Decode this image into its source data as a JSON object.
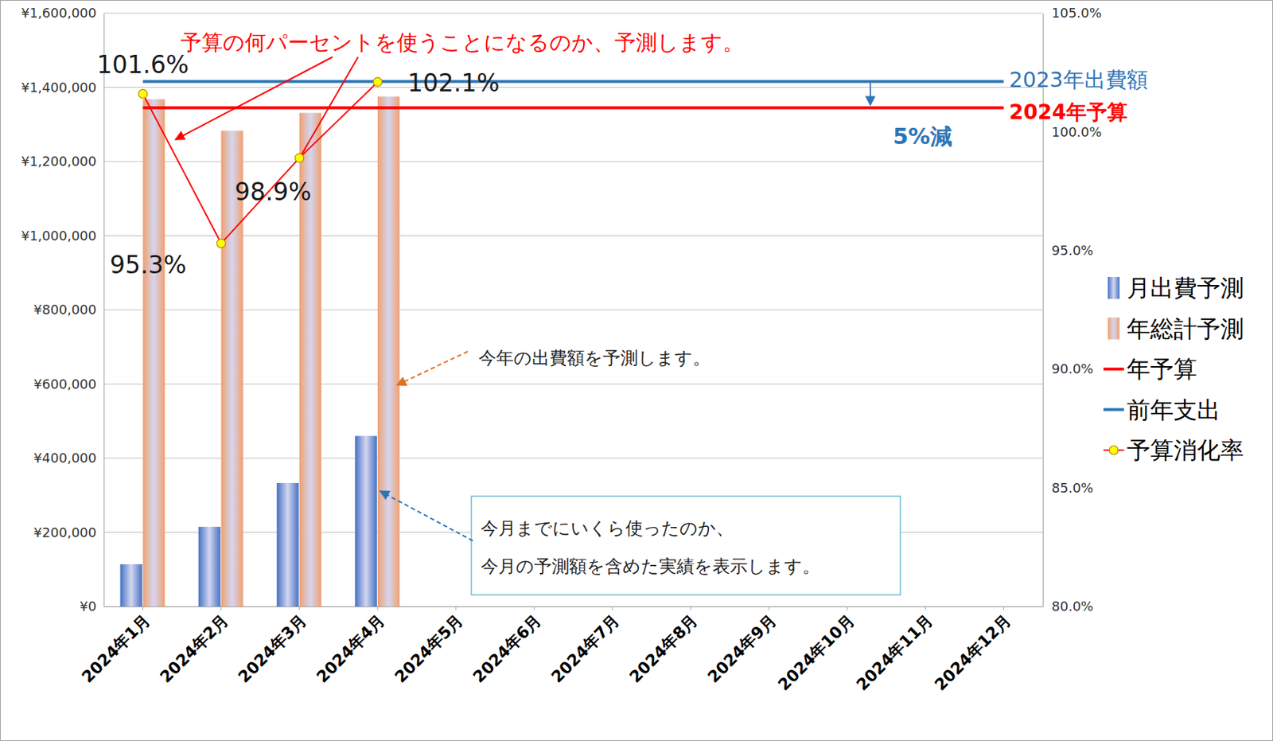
{
  "chart_data": {
    "type": "bar",
    "categories": [
      "2024年1月",
      "2024年2月",
      "2024年3月",
      "2024年4月",
      "2024年5月",
      "2024年6月",
      "2024年7月",
      "2024年8月",
      "2024年9月",
      "2024年10月",
      "2024年11月",
      "2024年12月"
    ],
    "ylim": [
      0,
      1600000
    ],
    "yticks": [
      {
        "value": 0,
        "label": "¥0"
      },
      {
        "value": 200000,
        "label": "¥200,000"
      },
      {
        "value": 400000,
        "label": "¥400,000"
      },
      {
        "value": 600000,
        "label": "¥600,000"
      },
      {
        "value": 800000,
        "label": "¥800,000"
      },
      {
        "value": 1000000,
        "label": "¥1,000,000"
      },
      {
        "value": 1200000,
        "label": "¥1,200,000"
      },
      {
        "value": 1400000,
        "label": "¥1,400,000"
      },
      {
        "value": 1600000,
        "label": "¥1,600,000"
      }
    ],
    "y2lim": [
      80,
      105
    ],
    "y2ticks": [
      {
        "value": 80,
        "label": "80.0%"
      },
      {
        "value": 85,
        "label": "85.0%"
      },
      {
        "value": 90,
        "label": "90.0%"
      },
      {
        "value": 95,
        "label": "95.0%"
      },
      {
        "value": 100,
        "label": "100.0%"
      },
      {
        "value": 105,
        "label": "105.0%"
      }
    ],
    "grid": true,
    "legend": "right",
    "series": [
      {
        "name": "月出費予測",
        "type": "bar",
        "color": "#4472c4",
        "values": [
          114000,
          215000,
          333000,
          460000,
          null,
          null,
          null,
          null,
          null,
          null,
          null,
          null
        ]
      },
      {
        "name": "年総計予測",
        "type": "bar",
        "color": "#f0a070",
        "values": [
          1368000,
          1283000,
          1331000,
          1375000,
          null,
          null,
          null,
          null,
          null,
          null,
          null,
          null
        ]
      },
      {
        "name": "年予算",
        "type": "line",
        "color": "#ff0000",
        "values": [
          1345000,
          1345000,
          1345000,
          1345000,
          1345000,
          1345000,
          1345000,
          1345000,
          1345000,
          1345000,
          1345000,
          1345000
        ]
      },
      {
        "name": "前年支出",
        "type": "line",
        "color": "#2e75b6",
        "values": [
          1416000,
          1416000,
          1416000,
          1416000,
          1416000,
          1416000,
          1416000,
          1416000,
          1416000,
          1416000,
          1416000,
          1416000
        ]
      },
      {
        "name": "予算消化率",
        "type": "line",
        "axis": "y2",
        "color": "#ff0000",
        "marker": "circle",
        "data_labels": true,
        "values": [
          101.6,
          95.3,
          98.9,
          102.1,
          null,
          null,
          null,
          null,
          null,
          null,
          null,
          null
        ],
        "value_labels": [
          "101.6%",
          "95.3%",
          "98.9%",
          "102.1%",
          null,
          null,
          null,
          null,
          null,
          null,
          null,
          null
        ]
      }
    ],
    "annotations": [
      "予算の何パーセントを使うことになるのか、予測します。",
      "今年の出費額を予測します。",
      "今月までにいくら使ったのか、",
      "今月の予測額を含めた実績を表示します。",
      "2023年出費額",
      "2024年予算",
      "5%減"
    ]
  }
}
